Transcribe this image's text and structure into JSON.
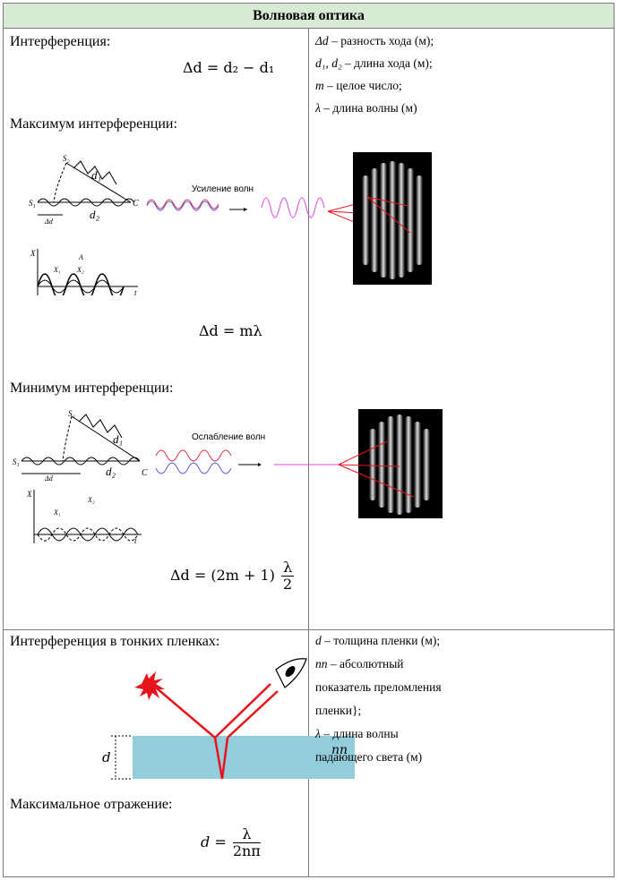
{
  "header": {
    "title": "Волновая оптика"
  },
  "section1": {
    "interference_label": "Интерференция:",
    "path_diff_formula": "Δd = d₂ − d₁",
    "max_label": "Максимум интерференции:",
    "max_formula": "Δd = mλ",
    "amplification_caption": "Усиление волн",
    "min_label": "Минимум интерференции:",
    "min_formula_left": "Δd = (2m + 1)",
    "min_formula_num": "λ",
    "min_formula_den": "2",
    "attenuation_caption": "Ослабление волн",
    "diagram_labels": {
      "s1": "S₁",
      "s2": "S₂",
      "d1": "d₁",
      "d2": "d₂",
      "c": "C",
      "delta_d": "Δd",
      "x": "X",
      "x1": "X₁",
      "x2": "X₂",
      "a": "A",
      "t": "t"
    }
  },
  "legend1": [
    {
      "sym": "Δd",
      "text": " – разность хода (м);"
    },
    {
      "sym": "d₁, d₂",
      "text": " – длина хода (м);"
    },
    {
      "sym": "m",
      "text": " – целое число;"
    },
    {
      "sym": "λ",
      "text": " – длина волны (м)"
    }
  ],
  "section2": {
    "title": "Интерференция в тонких пленках:",
    "d_label": "d",
    "n_label": "nп",
    "max_reflection_label": "Максимальное отражение:",
    "formula_left": "d =",
    "formula_num": "λ",
    "formula_den": "2nп"
  },
  "legend2": [
    {
      "sym": "d",
      "text": " – толщина пленки (м);"
    },
    {
      "sym": "nп",
      "text": " – абсолютный"
    },
    {
      "sym": "",
      "text": "показатель преломления"
    },
    {
      "sym": "",
      "text": "пленки};"
    },
    {
      "sym": "λ",
      "text": " – длина волны"
    },
    {
      "sym": "",
      "text": "падающего света (м)"
    }
  ],
  "colors": {
    "header_bg": "#d7ebd4",
    "film": "#93cddc",
    "ray": "#e8141c",
    "wave_red": "#e0304a",
    "wave_blue": "#5a5adc",
    "wave_magenta": "#e040e0"
  }
}
